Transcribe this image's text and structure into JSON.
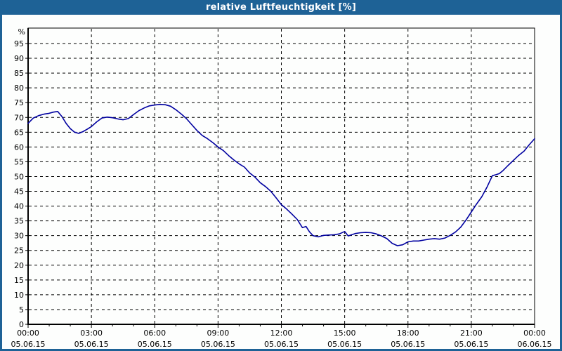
{
  "window": {
    "title": "relative Luftfeuchtigkeit [%]",
    "colors": {
      "title_bar": "#1E6296",
      "title_text": "#FFFFFF",
      "border": "#1E6296",
      "background": "#FDFEFD",
      "plot_frame": "#000000",
      "gridline": "#000000"
    }
  },
  "chart_data": {
    "type": "line",
    "title": "relative Luftfeuchtigkeit [%]",
    "ylabel": "%",
    "xlabel": "",
    "ylim": [
      0,
      100
    ],
    "grid": "dashed",
    "legend": "none",
    "line_color": "#0000A0",
    "y_ticks": [
      0,
      5,
      10,
      15,
      20,
      25,
      30,
      35,
      40,
      45,
      50,
      55,
      60,
      65,
      70,
      75,
      80,
      85,
      90,
      95
    ],
    "x_ticks": [
      {
        "hour": 0,
        "time": "00:00",
        "date": "05.06.15"
      },
      {
        "hour": 3,
        "time": "03:00",
        "date": "05.06.15"
      },
      {
        "hour": 6,
        "time": "06:00",
        "date": "05.06.15"
      },
      {
        "hour": 9,
        "time": "09:00",
        "date": "05.06.15"
      },
      {
        "hour": 12,
        "time": "12:00",
        "date": "05.06.15"
      },
      {
        "hour": 15,
        "time": "15:00",
        "date": "05.06.15"
      },
      {
        "hour": 18,
        "time": "18:00",
        "date": "05.06.15"
      },
      {
        "hour": 21,
        "time": "21:00",
        "date": "05.06.15"
      },
      {
        "hour": 24,
        "time": "00:00",
        "date": "06.06.15"
      }
    ],
    "points": [
      [
        0,
        68
      ],
      [
        0.25,
        69.8
      ],
      [
        0.5,
        70.6
      ],
      [
        0.75,
        71.1
      ],
      [
        1,
        71.4
      ],
      [
        1.2,
        71.8
      ],
      [
        1.4,
        72
      ],
      [
        1.6,
        70.3
      ],
      [
        1.8,
        68
      ],
      [
        2,
        66.2
      ],
      [
        2.2,
        65
      ],
      [
        2.4,
        64.6
      ],
      [
        2.6,
        65.2
      ],
      [
        2.8,
        66
      ],
      [
        3,
        66.9
      ],
      [
        3.25,
        68.5
      ],
      [
        3.5,
        69.8
      ],
      [
        3.75,
        70.1
      ],
      [
        4,
        69.9
      ],
      [
        4.25,
        69.5
      ],
      [
        4.5,
        69.2
      ],
      [
        4.75,
        69.6
      ],
      [
        5,
        71
      ],
      [
        5.25,
        72.3
      ],
      [
        5.5,
        73.2
      ],
      [
        5.75,
        73.9
      ],
      [
        6,
        74.2
      ],
      [
        6.25,
        74.4
      ],
      [
        6.5,
        74.3
      ],
      [
        6.75,
        73.8
      ],
      [
        7,
        72.6
      ],
      [
        7.25,
        71.2
      ],
      [
        7.5,
        69.6
      ],
      [
        7.75,
        67.6
      ],
      [
        8,
        65.6
      ],
      [
        8.25,
        63.9
      ],
      [
        8.5,
        62.8
      ],
      [
        8.75,
        61.5
      ],
      [
        9,
        60
      ],
      [
        9.25,
        58.8
      ],
      [
        9.5,
        57.1
      ],
      [
        9.75,
        55.6
      ],
      [
        10,
        54.3
      ],
      [
        10.25,
        53.2
      ],
      [
        10.5,
        51.2
      ],
      [
        10.75,
        49.8
      ],
      [
        11,
        47.9
      ],
      [
        11.25,
        46.6
      ],
      [
        11.5,
        45
      ],
      [
        11.75,
        42.8
      ],
      [
        12,
        40.5
      ],
      [
        12.25,
        39
      ],
      [
        12.5,
        37.3
      ],
      [
        12.75,
        35.5
      ],
      [
        13,
        32.7
      ],
      [
        13.17,
        33.1
      ],
      [
        13.33,
        31.3
      ],
      [
        13.5,
        30
      ],
      [
        13.75,
        29.6
      ],
      [
        14,
        30.1
      ],
      [
        14.25,
        30.2
      ],
      [
        14.5,
        30.3
      ],
      [
        14.75,
        30.6
      ],
      [
        15,
        31.4
      ],
      [
        15.17,
        29.9
      ],
      [
        15.33,
        30.3
      ],
      [
        15.5,
        30.7
      ],
      [
        15.75,
        31
      ],
      [
        16,
        31.1
      ],
      [
        16.25,
        31
      ],
      [
        16.5,
        30.6
      ],
      [
        16.75,
        29.9
      ],
      [
        17,
        29
      ],
      [
        17.25,
        27.4
      ],
      [
        17.5,
        26.6
      ],
      [
        17.75,
        26.9
      ],
      [
        18,
        27.9
      ],
      [
        18.25,
        28.2
      ],
      [
        18.5,
        28.2
      ],
      [
        18.75,
        28.5
      ],
      [
        19,
        28.8
      ],
      [
        19.25,
        29
      ],
      [
        19.5,
        28.8
      ],
      [
        19.75,
        29.2
      ],
      [
        20,
        30.1
      ],
      [
        20.25,
        31.2
      ],
      [
        20.5,
        32.9
      ],
      [
        20.75,
        35.3
      ],
      [
        21,
        38
      ],
      [
        21.25,
        40.7
      ],
      [
        21.5,
        43.2
      ],
      [
        21.75,
        46.5
      ],
      [
        22,
        50.3
      ],
      [
        22.17,
        50.6
      ],
      [
        22.33,
        51
      ],
      [
        22.5,
        52
      ],
      [
        22.75,
        53.8
      ],
      [
        23,
        55.5
      ],
      [
        23.25,
        57.2
      ],
      [
        23.5,
        58.6
      ],
      [
        23.75,
        60.8
      ],
      [
        24,
        62.8
      ]
    ]
  }
}
